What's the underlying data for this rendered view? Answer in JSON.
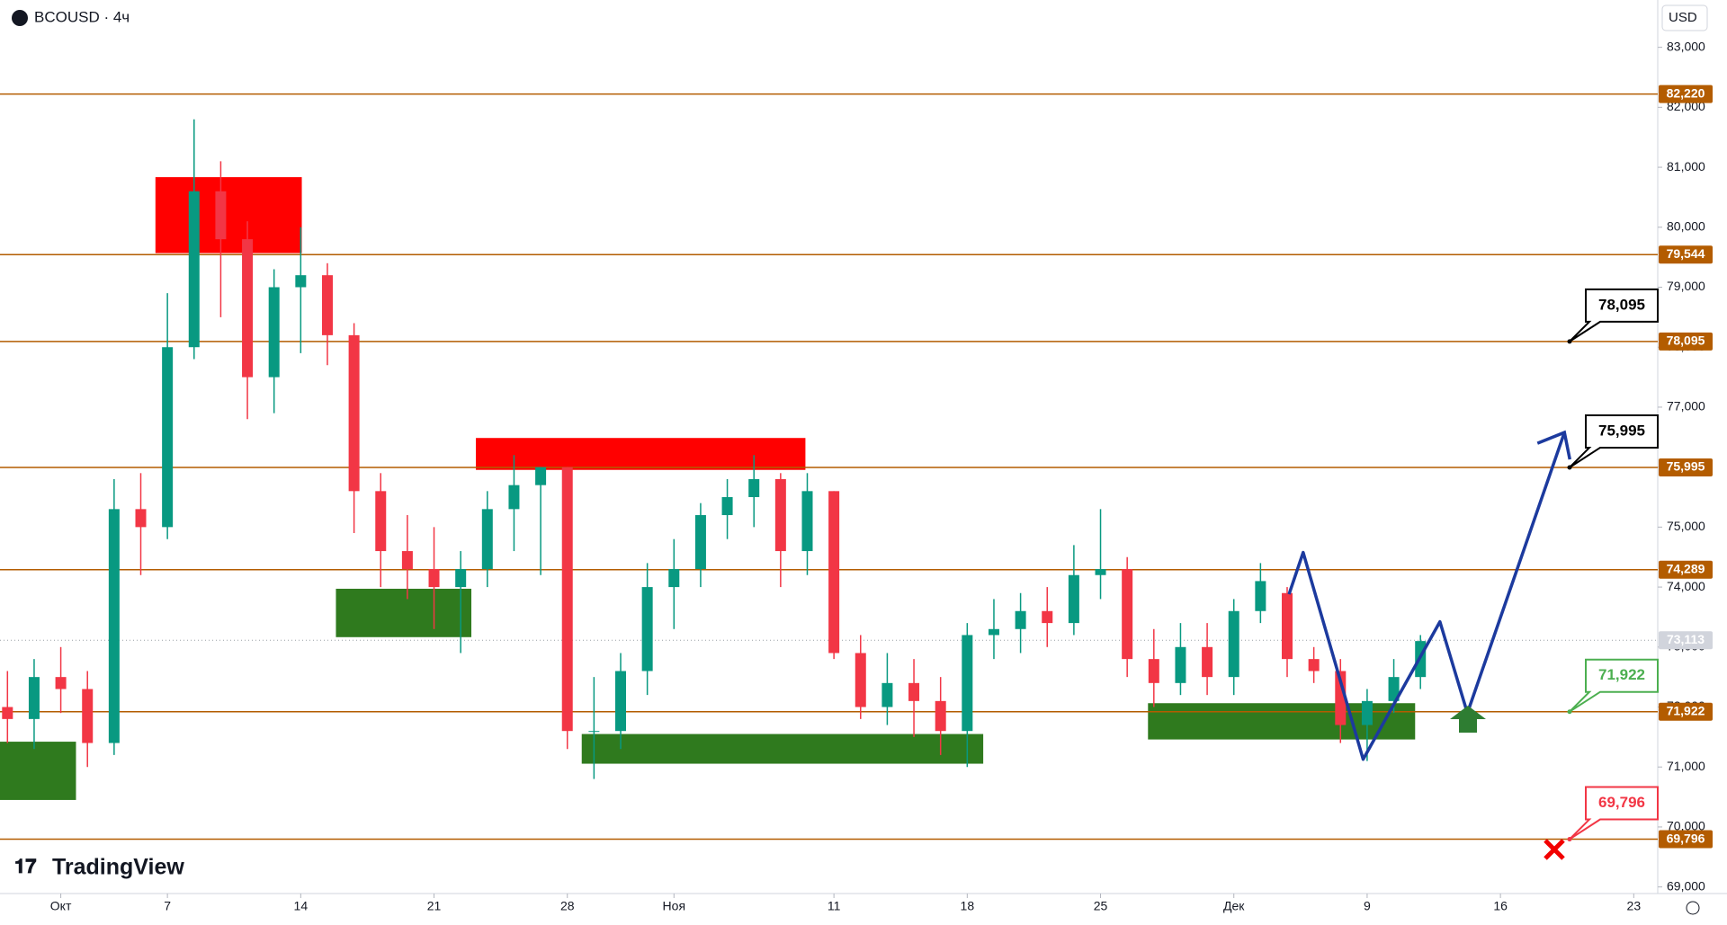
{
  "chart_data": {
    "type": "candlestick",
    "title": "BCOUSD · 4ч",
    "currency": "USD",
    "brand": "TradingView",
    "xlim": [
      -6.28,
      55.9
    ],
    "ylim": [
      68890,
      83789
    ],
    "xticks": [
      {
        "value": -4,
        "label": "Окт"
      },
      0,
      {
        "value": 5,
        "label": "14"
      },
      {
        "value": 10,
        "label": "21"
      },
      {
        "value": 15,
        "label": "28"
      },
      {
        "value": 19,
        "label": "Ноя"
      },
      {
        "value": 25,
        "label": "11"
      },
      {
        "value": 30,
        "label": "18"
      },
      {
        "value": 35,
        "label": "25"
      },
      {
        "value": 40,
        "label": "Дек"
      },
      {
        "value": 45,
        "label": "9"
      },
      {
        "value": 50,
        "label": "16"
      },
      {
        "value": 55,
        "label": "23"
      }
    ],
    "xtick_day_labels": [
      "7"
    ],
    "yticks": [
      {
        "value": 69000,
        "label": "69,000"
      },
      {
        "value": 70000,
        "label": "70,000"
      },
      {
        "value": 71000,
        "label": "71,000"
      },
      {
        "value": 72000,
        "label": "72,000"
      },
      {
        "value": 73000,
        "label": "73,000"
      },
      {
        "value": 74000,
        "label": "74,000"
      },
      {
        "value": 75000,
        "label": "75,000"
      },
      {
        "value": 76000,
        "label": "76,000"
      },
      {
        "value": 77000,
        "label": "77,000"
      },
      {
        "value": 78000,
        "label": "78,000"
      },
      {
        "value": 79000,
        "label": "79,000"
      },
      {
        "value": 80000,
        "label": "80,000"
      },
      {
        "value": 81000,
        "label": "81,000"
      },
      {
        "value": 82000,
        "label": "82,000"
      },
      {
        "value": 83000,
        "label": "83,000"
      }
    ],
    "up_color": "#089981",
    "down_color": "#f23645",
    "x": [
      -6,
      -5,
      -4,
      -3,
      -2,
      -1,
      0,
      1,
      2,
      3,
      4,
      5,
      6,
      7,
      8,
      9,
      10,
      11,
      12,
      13,
      14,
      15,
      16,
      17,
      18,
      19,
      20,
      21,
      22,
      23,
      24,
      25,
      26,
      27,
      28,
      29,
      30,
      31,
      32,
      33,
      34,
      35,
      36,
      37,
      38,
      39,
      40,
      41,
      42,
      43,
      44,
      45,
      46,
      47
    ],
    "open": [
      72000,
      71800,
      72500,
      72300,
      71400,
      75300,
      75000,
      78000,
      80600,
      79800,
      77500,
      79000,
      79200,
      78200,
      75600,
      74600,
      74300,
      74000,
      74300,
      75300,
      75700,
      76000,
      71600,
      71600,
      72600,
      74000,
      74300,
      75200,
      75500,
      75800,
      74600,
      75600,
      72900,
      72000,
      72400,
      72100,
      71600,
      73200,
      73300,
      73600,
      73400,
      74200,
      74300,
      72800,
      72400,
      73000,
      72500,
      73600,
      73900,
      72800,
      72600,
      71700,
      72100,
      72500
    ],
    "high": [
      72600,
      72800,
      73000,
      72600,
      75800,
      75900,
      78900,
      81800,
      81100,
      80100,
      79300,
      80000,
      79400,
      78400,
      75900,
      75200,
      75000,
      74600,
      75600,
      76200,
      76000,
      76000,
      72500,
      72900,
      74400,
      74800,
      75400,
      75800,
      76200,
      75900,
      75900,
      75600,
      73200,
      72900,
      72800,
      72500,
      73400,
      73800,
      73900,
      74000,
      74700,
      75300,
      74500,
      73300,
      73400,
      73400,
      73800,
      74400,
      74000,
      73000,
      72800,
      72300,
      72800,
      73200
    ],
    "low": [
      71400,
      71300,
      71900,
      71000,
      71200,
      74200,
      74800,
      77800,
      78500,
      76800,
      76900,
      77900,
      77700,
      74900,
      74000,
      73800,
      73300,
      72900,
      74000,
      74600,
      74200,
      71300,
      70800,
      71300,
      72200,
      73300,
      74000,
      74800,
      75000,
      74000,
      74200,
      72800,
      71800,
      71700,
      71500,
      71200,
      71000,
      72800,
      72900,
      73000,
      73200,
      73800,
      72500,
      72000,
      72200,
      72200,
      72200,
      73400,
      72500,
      72400,
      71400,
      71100,
      71900,
      72300
    ],
    "close": [
      71800,
      72500,
      72300,
      71400,
      75300,
      75000,
      78000,
      80600,
      79800,
      77500,
      79000,
      79200,
      78200,
      75600,
      74600,
      74300,
      74000,
      74300,
      75300,
      75700,
      76000,
      71600,
      71600,
      72600,
      74000,
      74300,
      75200,
      75500,
      75800,
      74600,
      75600,
      72900,
      72000,
      72400,
      72100,
      71600,
      73200,
      73300,
      73600,
      73400,
      74200,
      74300,
      72800,
      72400,
      73000,
      72500,
      73600,
      74100,
      72800,
      72600,
      71700,
      72100,
      72500,
      73100
    ],
    "zones": [
      {
        "x": [
          -0.45,
          5.04
        ],
        "range": [
          79569,
          80835
        ],
        "color": "#ff0000"
      },
      {
        "x": [
          11.57,
          23.93
        ],
        "range": [
          75954,
          76486
        ],
        "color": "#ff0000"
      },
      {
        "x": [
          6.32,
          11.4
        ],
        "range": [
          73165,
          73972
        ],
        "color": "#2f7a1e"
      },
      {
        "x": [
          15.54,
          30.6
        ],
        "range": [
          71055,
          71550
        ],
        "color": "#2f7a1e"
      },
      {
        "x": [
          36.78,
          46.8
        ],
        "range": [
          71459,
          72064
        ],
        "color": "#2f7a1e"
      },
      {
        "x": [
          -6.28,
          -3.43
        ],
        "range": [
          70450,
          71422
        ],
        "color": "#2f7a1e"
      }
    ],
    "level_color": "#b35c00",
    "levels": [
      {
        "value": 82220,
        "label": "82,220"
      },
      {
        "value": 79544,
        "label": "79,544"
      },
      {
        "value": 78095,
        "label": "78,095"
      },
      {
        "value": 75995,
        "label": "75,995"
      },
      {
        "value": 74289,
        "label": "74,289"
      },
      {
        "value": 71922,
        "label": "71,922"
      },
      {
        "value": 69796,
        "label": "69,796"
      }
    ],
    "callouts": [
      {
        "value": 78095,
        "label": "78,095",
        "color": "#000000"
      },
      {
        "value": 75995,
        "label": "75,995",
        "color": "#000000"
      },
      {
        "value": 71922,
        "label": "71,922",
        "color": "#4caf50"
      },
      {
        "value": 69796,
        "label": "69,796",
        "color": "#f23645"
      }
    ],
    "last": {
      "value": 73113,
      "label": "73,113"
    },
    "projection": {
      "color": "#1c3a9e",
      "x": [
        42.07,
        42.6,
        44.85,
        47.73,
        48.76,
        52.4
      ],
      "values": [
        73881,
        74578,
        71128,
        73422,
        71899,
        76578
      ]
    }
  }
}
